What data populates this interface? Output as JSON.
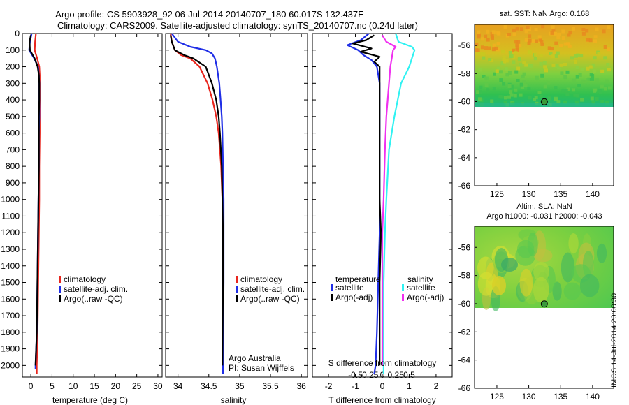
{
  "header": {
    "title_line1": "Argo profile: CS 5903928_92 06-Jul-2014 20140707_180 60.017S 132.437E",
    "title_line2": "Climatology: CARS2009. Satellite-adjusted climatology: synTS_20140707.nc (0.24d later)"
  },
  "colors": {
    "climatology": "#e8261e",
    "satellite": "#1f2ee6",
    "argo": "#000000",
    "salinity_satellite": "#30f2f2",
    "salinity_argo": "#f030f0"
  },
  "chart_data": [
    {
      "type": "line",
      "panel": "temperature",
      "xlabel": "temperature (deg C)",
      "ylabel": "",
      "xlim": [
        -2,
        31
      ],
      "ylim": [
        2070,
        0
      ],
      "xticks": [
        0,
        5,
        10,
        15,
        20,
        25,
        30
      ],
      "yticks": [
        0,
        100,
        200,
        300,
        400,
        500,
        600,
        700,
        800,
        900,
        1000,
        1100,
        1200,
        1300,
        1400,
        1500,
        1600,
        1700,
        1800,
        1900,
        2000
      ],
      "legend": [
        "climatology",
        "satellite-adj. clim.",
        "Argo(..raw -QC)"
      ],
      "legend_position": "lower-right",
      "series": [
        {
          "name": "climatology",
          "depth": [
            0,
            50,
            100,
            150,
            200,
            250,
            300,
            400,
            500,
            600,
            800,
            1000,
            1200,
            1400,
            1600,
            1800,
            2000,
            2050
          ],
          "values": [
            1.2,
            1.0,
            0.9,
            1.5,
            2.0,
            2.1,
            2.1,
            2.1,
            2.1,
            2.1,
            2.0,
            2.0,
            1.9,
            1.8,
            1.7,
            1.6,
            1.4,
            1.4
          ]
        },
        {
          "name": "satellite-adj. clim.",
          "depth": [
            0,
            50,
            100,
            150,
            200,
            250,
            300,
            400,
            500,
            600,
            800,
            1000,
            1200,
            1400,
            1600,
            1800,
            2000,
            2020
          ],
          "values": [
            0.2,
            -0.2,
            -0.4,
            0.8,
            1.7,
            1.9,
            2.0,
            2.0,
            2.0,
            1.9,
            1.9,
            1.8,
            1.7,
            1.6,
            1.5,
            1.4,
            1.1,
            1.1
          ]
        },
        {
          "name": "Argo(..raw -QC)",
          "depth": [
            10,
            50,
            100,
            150,
            200,
            250,
            300,
            400,
            500,
            600,
            800,
            1000,
            1200,
            1400,
            1600,
            1800,
            2000
          ],
          "values": [
            0.0,
            -0.3,
            -0.2,
            0.9,
            1.6,
            1.9,
            2.0,
            2.0,
            1.9,
            1.9,
            1.9,
            1.8,
            1.7,
            1.6,
            1.5,
            1.4,
            1.1
          ]
        }
      ]
    },
    {
      "type": "line",
      "panel": "salinity",
      "xlabel": "salinity",
      "ylabel": "",
      "xlim": [
        33.8,
        36.1
      ],
      "ylim": [
        2070,
        0
      ],
      "xticks": [
        34,
        34.5,
        35,
        35.5,
        36
      ],
      "xticklabels": [
        "34",
        "34.5",
        "35",
        "35.5",
        "36"
      ],
      "legend": [
        "climatology",
        "satellite-adj. clim.",
        "Argo(..raw -QC)"
      ],
      "legend_position": "lower-right",
      "annotation": [
        "Argo Australia",
        "PI: Susan Wijffels"
      ],
      "series": [
        {
          "name": "climatology",
          "depth": [
            0,
            50,
            100,
            130,
            150,
            200,
            300,
            400,
            500,
            600,
            700,
            800,
            1000,
            1200,
            1500,
            2000,
            2050
          ],
          "values": [
            33.88,
            33.9,
            33.95,
            34.05,
            34.2,
            34.35,
            34.48,
            34.56,
            34.62,
            34.66,
            34.68,
            34.7,
            34.72,
            34.73,
            34.73,
            34.72,
            34.72
          ]
        },
        {
          "name": "satellite-adj. clim.",
          "depth": [
            0,
            50,
            80,
            100,
            120,
            150,
            200,
            300,
            400,
            500,
            600,
            800,
            1000,
            1200,
            1500,
            2000,
            2050
          ],
          "values": [
            33.9,
            34.0,
            34.2,
            34.45,
            34.55,
            34.6,
            34.63,
            34.67,
            34.69,
            34.71,
            34.72,
            34.73,
            34.74,
            34.74,
            34.74,
            34.73,
            34.73
          ]
        },
        {
          "name": "Argo(..raw -QC)",
          "depth": [
            10,
            50,
            100,
            130,
            150,
            200,
            300,
            400,
            500,
            600,
            800,
            1000,
            1200,
            1500,
            2000
          ],
          "values": [
            33.88,
            33.9,
            33.95,
            34.1,
            34.25,
            34.45,
            34.55,
            34.62,
            34.66,
            34.68,
            34.71,
            34.72,
            34.73,
            34.73,
            34.72
          ]
        }
      ]
    },
    {
      "type": "line",
      "panel": "difference",
      "xlabel": "T difference from climatology",
      "xlabel_secondary": "S difference from climatology",
      "xlim": [
        -2.6,
        2.6
      ],
      "ylim": [
        2070,
        0
      ],
      "xticks": [
        -2,
        -1,
        0,
        1,
        2
      ],
      "xticks_secondary": [
        "-0.5",
        "-0.25",
        "0",
        "0.25",
        "0.5"
      ],
      "legend_temperature_title": "temperature",
      "legend_salinity_title": "salinity",
      "legend": [
        "satellite",
        "Argo(-adj)",
        "satellite",
        "Argo(-adj)"
      ],
      "legend_position": "lower-center",
      "series": [
        {
          "name": "temperature satellite",
          "depth": [
            0,
            40,
            70,
            100,
            130,
            160,
            200,
            300,
            500,
            800,
            1000,
            1200,
            1500,
            1800,
            2000,
            2050
          ],
          "values": [
            -0.5,
            -0.8,
            -1.3,
            -0.9,
            -0.7,
            -0.4,
            -0.2,
            -0.1,
            -0.1,
            -0.1,
            -0.1,
            -0.1,
            -0.15,
            -0.2,
            -0.25,
            -0.3
          ]
        },
        {
          "name": "temperature Argo(-adj)",
          "depth": [
            10,
            40,
            60,
            90,
            110,
            140,
            170,
            200,
            250,
            300,
            500,
            800,
            1000,
            1200,
            1500,
            1800,
            2000
          ],
          "values": [
            -0.3,
            -0.6,
            -1.1,
            -0.4,
            -0.8,
            -0.1,
            -0.3,
            -0.1,
            -0.1,
            -0.1,
            -0.1,
            -0.1,
            -0.1,
            -0.05,
            -0.1,
            -0.1,
            -0.1
          ]
        },
        {
          "name": "salinity satellite",
          "depth": [
            0,
            50,
            80,
            100,
            150,
            200,
            300,
            500,
            700,
            1000,
            1200,
            1500,
            1800,
            2000,
            2050
          ],
          "values": [
            0.5,
            0.6,
            1.1,
            1.2,
            1.1,
            1.0,
            0.7,
            0.45,
            0.25,
            0.15,
            0.1,
            0.05,
            0.05,
            0.05,
            0.05
          ]
        },
        {
          "name": "salinity Argo(-adj)",
          "depth": [
            10,
            50,
            80,
            100,
            150,
            200,
            300,
            500,
            700,
            1000,
            1200,
            1500,
            1800,
            2000
          ],
          "values": [
            0.0,
            0.15,
            0.5,
            0.4,
            0.35,
            0.3,
            0.25,
            0.15,
            0.1,
            0.05,
            0.0,
            0.0,
            0.0,
            0.0
          ]
        }
      ]
    }
  ],
  "maps": {
    "sst": {
      "title": "sat. SST: NaN  Argo: 0.168",
      "xticks": [
        "125",
        "130",
        "135",
        "140"
      ],
      "yticks": [
        "-56",
        "-58",
        "-60",
        "-62",
        "-64",
        "-66"
      ],
      "argo_lon": 132.437,
      "argo_lat": -60.017
    },
    "sla": {
      "title_line1": "Altim. SLA: NaN",
      "title_line2": "Argo h1000: -0.031 h2000: -0.043",
      "xticks": [
        "125",
        "130",
        "135",
        "140"
      ],
      "yticks": [
        "-56",
        "-58",
        "-60",
        "-62",
        "-64",
        "-66"
      ],
      "argo_lon": 132.437,
      "argo_lat": -60.017
    }
  },
  "footer": {
    "watermark": "IMOS 14-Jul-2014 20:00:30"
  }
}
